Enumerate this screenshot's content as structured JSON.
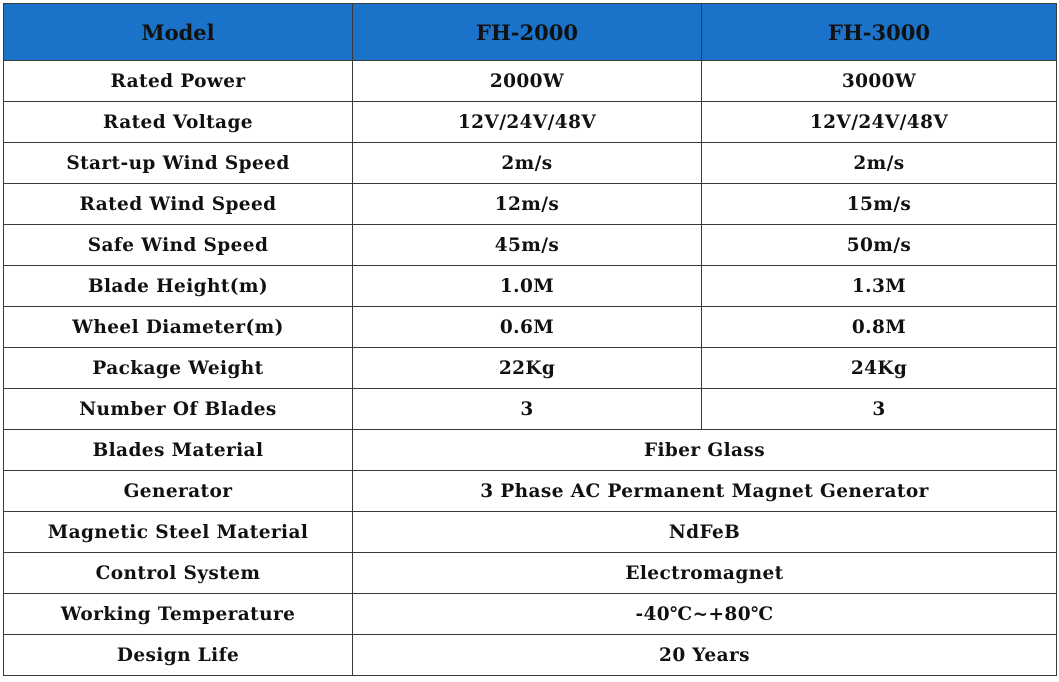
{
  "header": {
    "model_label": "Model",
    "col_a": "FH-2000",
    "col_b": "FH-3000"
  },
  "rows": [
    {
      "label": "Rated Power",
      "a": "2000W",
      "b": "3000W"
    },
    {
      "label": "Rated Voltage",
      "a": "12V/24V/48V",
      "b": "12V/24V/48V"
    },
    {
      "label": "Start-up Wind Speed",
      "a": "2m/s",
      "b": "2m/s"
    },
    {
      "label": "Rated Wind Speed",
      "a": "12m/s",
      "b": "15m/s"
    },
    {
      "label": "Safe Wind Speed",
      "a": "45m/s",
      "b": "50m/s"
    },
    {
      "label": "Blade Height(m)",
      "a": "1.0M",
      "b": "1.3M"
    },
    {
      "label": "Wheel Diameter(m)",
      "a": "0.6M",
      "b": "0.8M"
    },
    {
      "label": "Package Weight",
      "a": "22Kg",
      "b": "24Kg"
    },
    {
      "label": "Number Of Blades",
      "a": "3",
      "b": "3"
    }
  ],
  "merged_rows": [
    {
      "label": "Blades Material",
      "value": "Fiber Glass"
    },
    {
      "label": "Generator",
      "value": "3 Phase AC Permanent Magnet Generator"
    },
    {
      "label": "Magnetic Steel Material",
      "value": "NdFeB"
    },
    {
      "label": "Control System",
      "value": "Electromagnet"
    },
    {
      "label": "Working Temperature",
      "value": "-40℃~+80℃"
    },
    {
      "label": "Design Life",
      "value": "20 Years"
    }
  ]
}
